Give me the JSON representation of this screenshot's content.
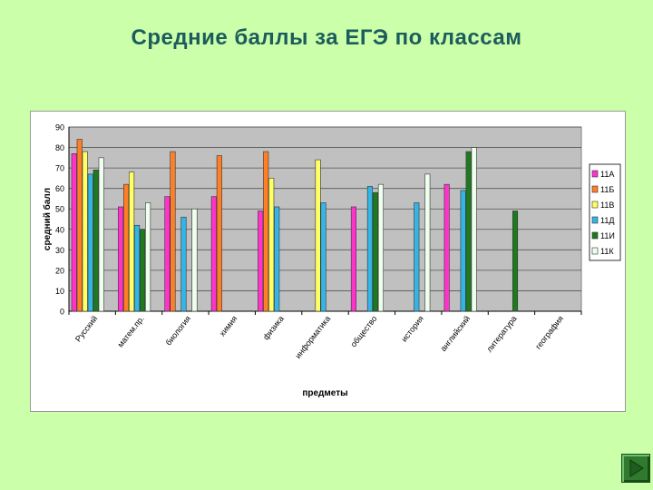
{
  "slide": {
    "title": "Средние баллы за ЕГЭ по классам"
  },
  "chart_data": {
    "type": "bar",
    "title": "",
    "xlabel": "предметы",
    "ylabel": "средний балл",
    "ylim": [
      0,
      90
    ],
    "yticks": [
      0,
      10,
      20,
      30,
      40,
      50,
      60,
      70,
      80,
      90
    ],
    "grid": true,
    "legend_position": "right",
    "categories": [
      "Русский",
      "матем.пр.",
      "биология",
      "химия",
      "физика",
      "информатика",
      "общество",
      "история",
      "английский",
      "литература",
      "география"
    ],
    "series": [
      {
        "name": "11А",
        "color": "#ff33cc",
        "values": [
          77,
          51,
          56,
          56,
          49,
          null,
          51,
          null,
          62,
          null,
          null
        ]
      },
      {
        "name": "11Б",
        "color": "#ff7f27",
        "values": [
          84,
          62,
          78,
          76,
          78,
          null,
          null,
          null,
          null,
          null,
          null
        ]
      },
      {
        "name": "11В",
        "color": "#ffff66",
        "values": [
          78,
          68,
          null,
          null,
          65,
          74,
          null,
          null,
          null,
          null,
          null
        ]
      },
      {
        "name": "11Д",
        "color": "#33b5e5",
        "values": [
          67,
          42,
          46,
          null,
          51,
          53,
          61,
          53,
          59,
          null,
          null
        ]
      },
      {
        "name": "11И",
        "color": "#1f7a1f",
        "values": [
          69,
          40,
          null,
          null,
          null,
          null,
          58,
          null,
          78,
          49,
          null
        ]
      },
      {
        "name": "11К",
        "color": "#efffef",
        "values": [
          75,
          53,
          50,
          null,
          null,
          null,
          62,
          67,
          80,
          null,
          null
        ]
      }
    ],
    "background_color": "#c0c0c0"
  },
  "nav": {
    "next_icon": "arrow-right-icon"
  }
}
